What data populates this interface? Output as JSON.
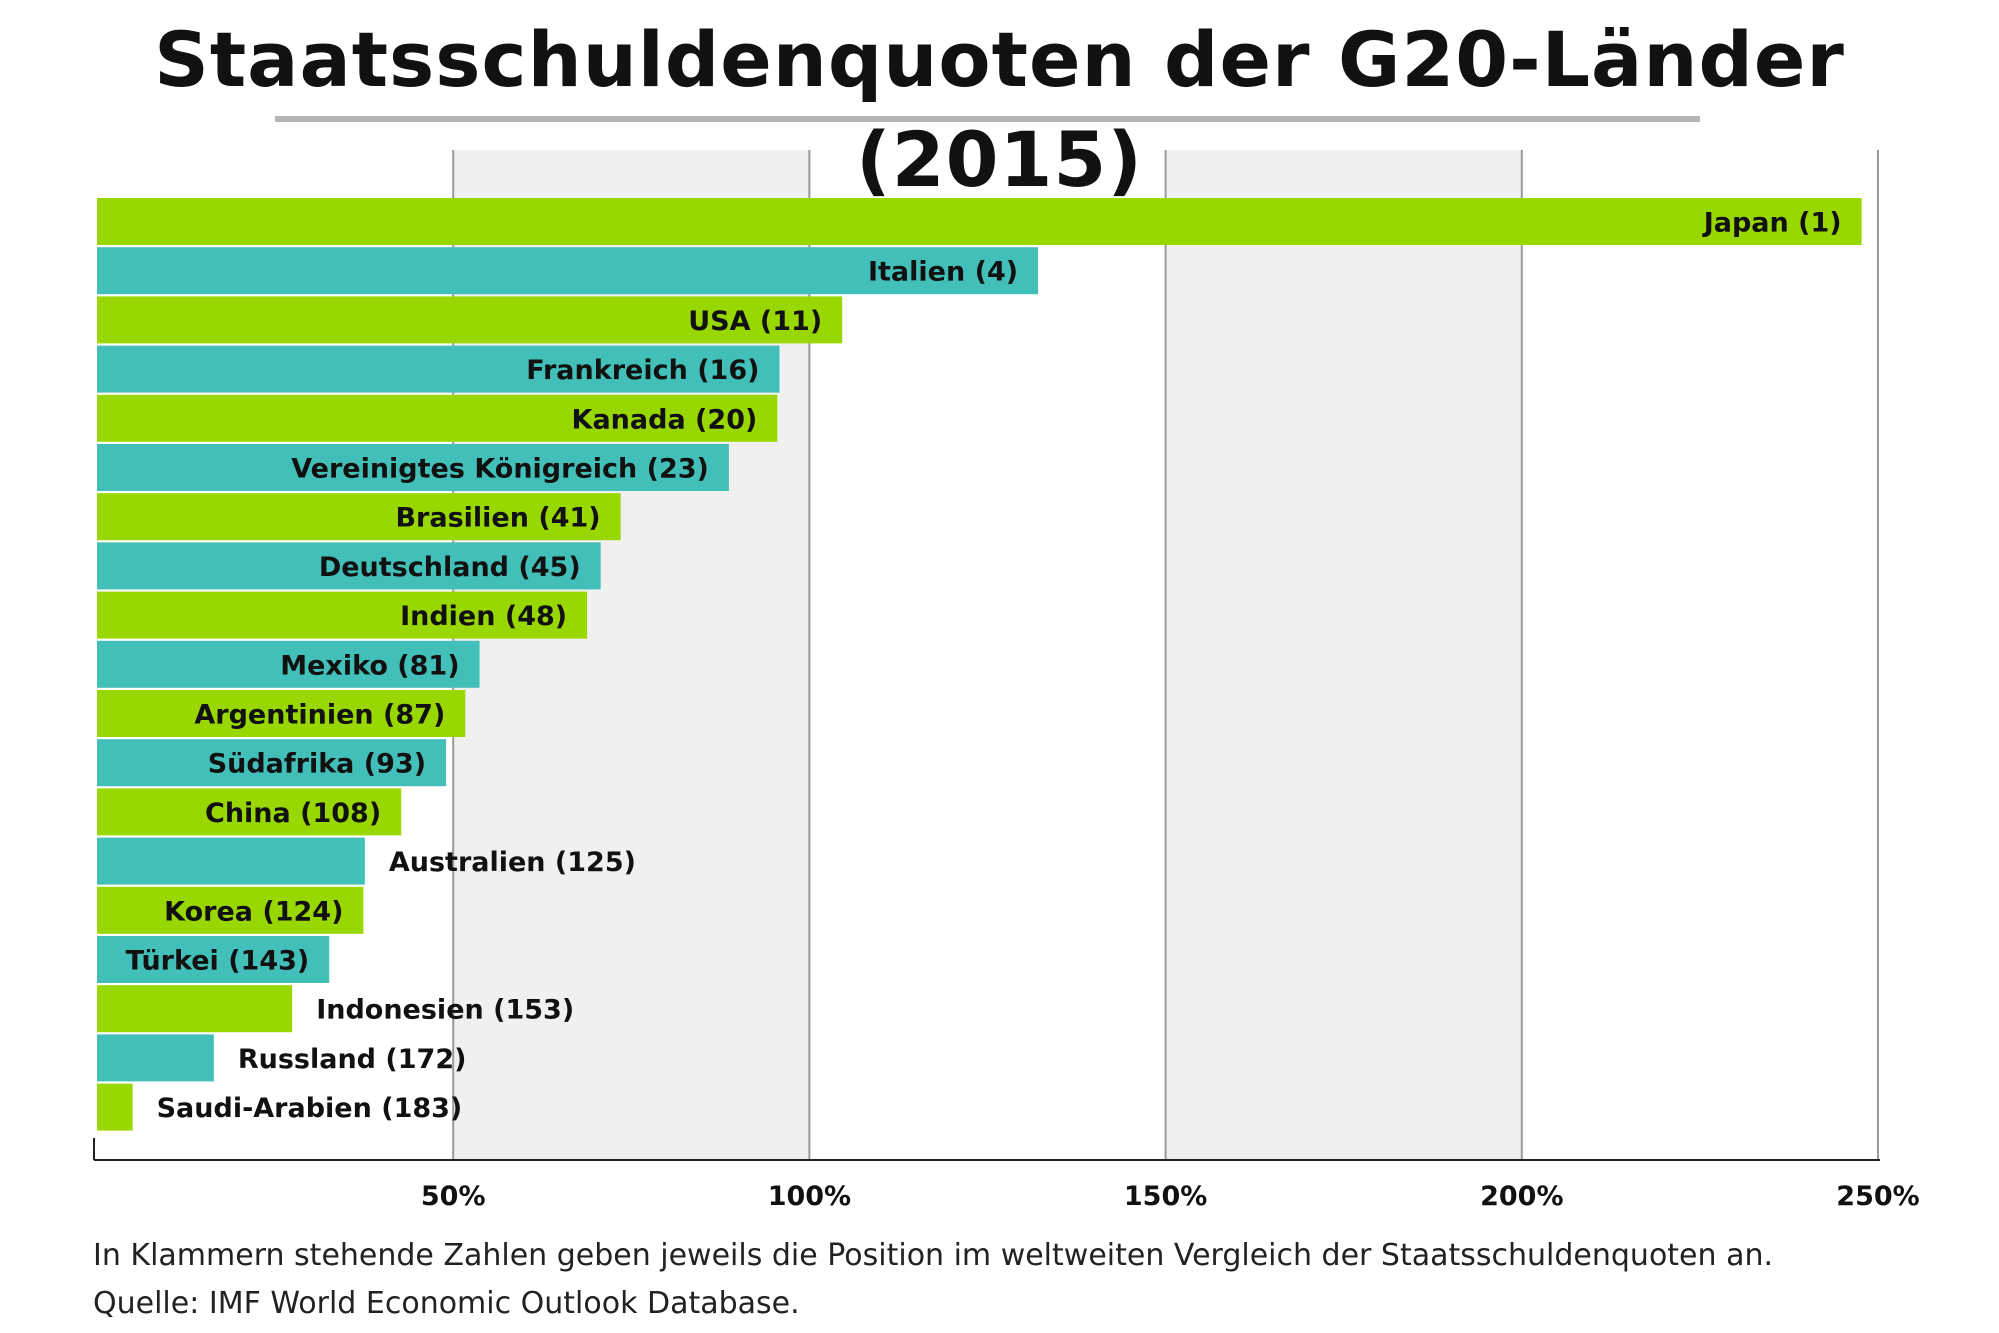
{
  "chart_data": {
    "type": "bar",
    "orientation": "horizontal",
    "title": "Staatsschuldenquoten der G20-Länder (2015)",
    "xlim": [
      0,
      250
    ],
    "x_ticks": [
      50,
      100,
      150,
      200,
      250
    ],
    "x_tick_labels": [
      "50%",
      "100%",
      "150%",
      "200%",
      "250%"
    ],
    "grid": true,
    "colors": [
      "#99d700",
      "#42bfb8"
    ],
    "band_color": "#f0f0f0",
    "categories": [
      "Japan (1)",
      "Italien (4)",
      "USA (11)",
      "Frankreich (16)",
      "Kanada (20)",
      "Vereinigtes Königreich (23)",
      "Brasilien (41)",
      "Deutschland (45)",
      "Indien (48)",
      "Mexiko (81)",
      "Argentinien (87)",
      "Südafrika (93)",
      "China (108)",
      "Australien (125)",
      "Korea (124)",
      "Türkei (143)",
      "Indonesien (153)",
      "Russland (172)",
      "Saudi-Arabien (183)"
    ],
    "values": [
      247.7,
      132.1,
      104.6,
      95.8,
      95.5,
      88.7,
      73.5,
      70.7,
      68.8,
      53.7,
      51.7,
      49.0,
      42.7,
      37.6,
      37.4,
      32.6,
      27.4,
      16.4,
      5.0
    ]
  },
  "footnotes": {
    "line1": "In Klammern stehende Zahlen geben jeweils die Position im weltweiten Vergleich der Staatsschuldenquoten an.",
    "line2": "Quelle: IMF World Economic Outlook Database."
  }
}
